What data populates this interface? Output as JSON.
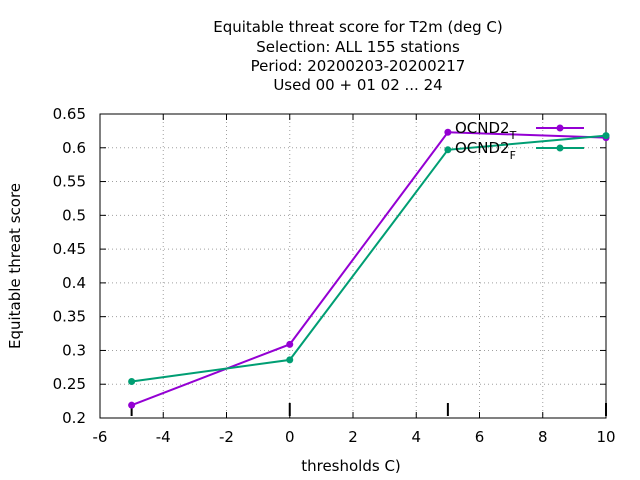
{
  "chart_data": {
    "type": "line",
    "title_lines": [
      "Equitable threat score  for T2m (deg C)",
      "Selection: ALL    155 stations",
      "Period: 20200203-20200217",
      "Used  00 + 01 02 ... 24"
    ],
    "xlabel": "thresholds C)",
    "ylabel": "Equitable threat score",
    "xlim": [
      -6,
      10
    ],
    "ylim": [
      0.2,
      0.65
    ],
    "xticks": [
      -6,
      -4,
      -2,
      0,
      2,
      4,
      6,
      8,
      10
    ],
    "yticks": [
      0.2,
      0.25,
      0.3,
      0.35,
      0.4,
      0.45,
      0.5,
      0.55,
      0.6,
      0.65
    ],
    "grid": true,
    "legend_position": "top-right",
    "x": [
      -5,
      0,
      5,
      10
    ],
    "series": [
      {
        "name_base": "OCND2",
        "name_sub": "T",
        "color": "#9400d3",
        "values": [
          0.219,
          0.309,
          0.623,
          0.615
        ]
      },
      {
        "name_base": "OCND2",
        "name_sub": "F",
        "color": "#009e73",
        "values": [
          0.254,
          0.286,
          0.597,
          0.618
        ]
      }
    ],
    "threshold_marks": [
      -5,
      0,
      5,
      10
    ]
  }
}
